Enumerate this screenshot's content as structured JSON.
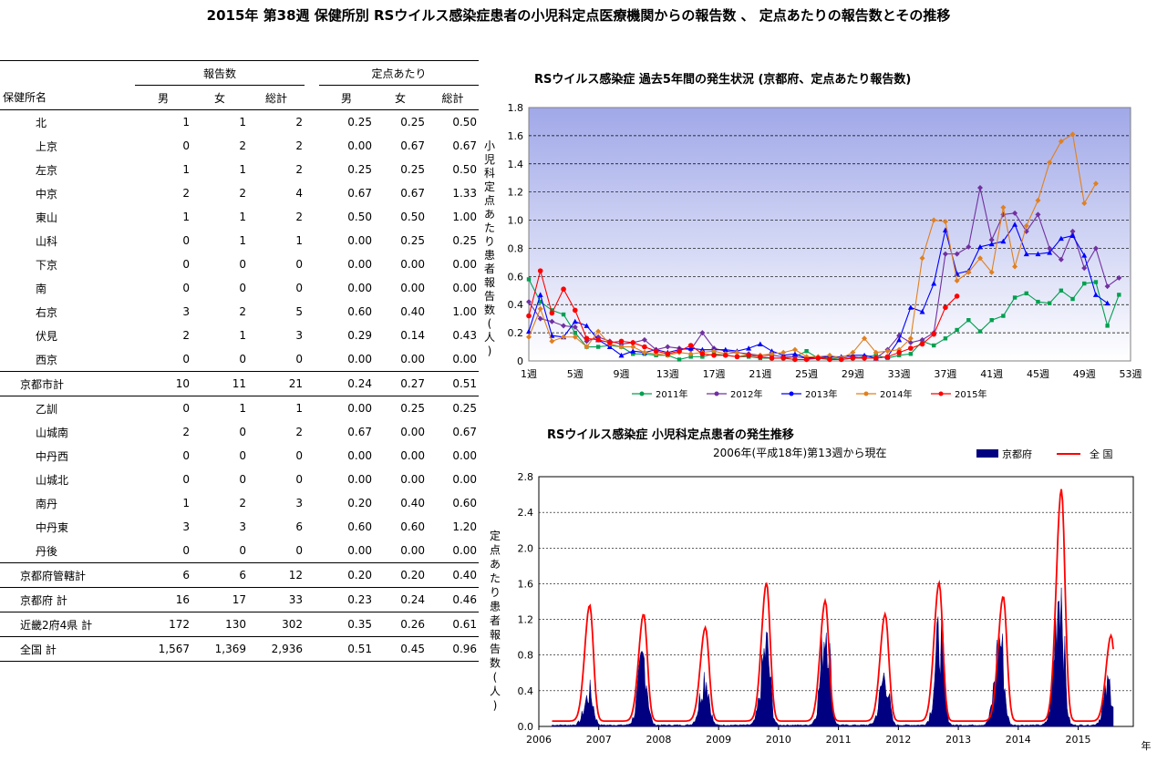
{
  "title": "2015年 第38週 保健所別 RSウイルス感染症患者の小児科定点医療機関からの報告数 、 定点あたりの報告数とその推移",
  "table": {
    "group_reports": "報告数",
    "group_per": "定点あたり",
    "col_name": "保健所名",
    "col_male": "男",
    "col_female": "女",
    "col_total": "総計",
    "rows": [
      {
        "name": "北",
        "m": "1",
        "f": "1",
        "t": "2",
        "pm": "0.25",
        "pf": "0.25",
        "pt": "0.50",
        "kind": "item"
      },
      {
        "name": "上京",
        "m": "0",
        "f": "2",
        "t": "2",
        "pm": "0.00",
        "pf": "0.67",
        "pt": "0.67",
        "kind": "item"
      },
      {
        "name": "左京",
        "m": "1",
        "f": "1",
        "t": "2",
        "pm": "0.25",
        "pf": "0.25",
        "pt": "0.50",
        "kind": "item"
      },
      {
        "name": "中京",
        "m": "2",
        "f": "2",
        "t": "4",
        "pm": "0.67",
        "pf": "0.67",
        "pt": "1.33",
        "kind": "item"
      },
      {
        "name": "東山",
        "m": "1",
        "f": "1",
        "t": "2",
        "pm": "0.50",
        "pf": "0.50",
        "pt": "1.00",
        "kind": "item"
      },
      {
        "name": "山科",
        "m": "0",
        "f": "1",
        "t": "1",
        "pm": "0.00",
        "pf": "0.25",
        "pt": "0.25",
        "kind": "item"
      },
      {
        "name": "下京",
        "m": "0",
        "f": "0",
        "t": "0",
        "pm": "0.00",
        "pf": "0.00",
        "pt": "0.00",
        "kind": "item"
      },
      {
        "name": "南",
        "m": "0",
        "f": "0",
        "t": "0",
        "pm": "0.00",
        "pf": "0.00",
        "pt": "0.00",
        "kind": "item"
      },
      {
        "name": "右京",
        "m": "3",
        "f": "2",
        "t": "5",
        "pm": "0.60",
        "pf": "0.40",
        "pt": "1.00",
        "kind": "item"
      },
      {
        "name": "伏見",
        "m": "2",
        "f": "1",
        "t": "3",
        "pm": "0.29",
        "pf": "0.14",
        "pt": "0.43",
        "kind": "item"
      },
      {
        "name": "西京",
        "m": "0",
        "f": "0",
        "t": "0",
        "pm": "0.00",
        "pf": "0.00",
        "pt": "0.00",
        "kind": "item"
      },
      {
        "name": "京都市計",
        "m": "10",
        "f": "11",
        "t": "21",
        "pm": "0.24",
        "pf": "0.27",
        "pt": "0.51",
        "kind": "total"
      },
      {
        "name": "乙訓",
        "m": "0",
        "f": "1",
        "t": "1",
        "pm": "0.00",
        "pf": "0.25",
        "pt": "0.25",
        "kind": "item"
      },
      {
        "name": "山城南",
        "m": "2",
        "f": "0",
        "t": "2",
        "pm": "0.67",
        "pf": "0.00",
        "pt": "0.67",
        "kind": "item"
      },
      {
        "name": "中丹西",
        "m": "0",
        "f": "0",
        "t": "0",
        "pm": "0.00",
        "pf": "0.00",
        "pt": "0.00",
        "kind": "item"
      },
      {
        "name": "山城北",
        "m": "0",
        "f": "0",
        "t": "0",
        "pm": "0.00",
        "pf": "0.00",
        "pt": "0.00",
        "kind": "item"
      },
      {
        "name": "南丹",
        "m": "1",
        "f": "2",
        "t": "3",
        "pm": "0.20",
        "pf": "0.40",
        "pt": "0.60",
        "kind": "item"
      },
      {
        "name": "中丹東",
        "m": "3",
        "f": "3",
        "t": "6",
        "pm": "0.60",
        "pf": "0.60",
        "pt": "1.20",
        "kind": "item"
      },
      {
        "name": "丹後",
        "m": "0",
        "f": "0",
        "t": "0",
        "pm": "0.00",
        "pf": "0.00",
        "pt": "0.00",
        "kind": "item"
      },
      {
        "name": "京都府管轄計",
        "m": "6",
        "f": "6",
        "t": "12",
        "pm": "0.20",
        "pf": "0.20",
        "pt": "0.40",
        "kind": "total"
      },
      {
        "name": "京都府 計",
        "m": "16",
        "f": "17",
        "t": "33",
        "pm": "0.23",
        "pf": "0.24",
        "pt": "0.46",
        "kind": "total"
      },
      {
        "name": "近畿2府4県 計",
        "m": "172",
        "f": "130",
        "t": "302",
        "pm": "0.35",
        "pf": "0.26",
        "pt": "0.61",
        "kind": "total"
      },
      {
        "name": "全国 計",
        "m": "1,567",
        "f": "1,369",
        "t": "2,936",
        "pm": "0.51",
        "pf": "0.45",
        "pt": "0.96",
        "kind": "total"
      }
    ]
  },
  "colors": {
    "y2011": "#00A050",
    "y2012": "#7030A0",
    "y2013": "#0000FF",
    "y2014": "#E08020",
    "y2015": "#FF0000",
    "kyoto": "#000080",
    "national": "#FF0000"
  },
  "chart_data": [
    {
      "type": "line",
      "title": "RSウイルス感染症 過去5年間の発生状況 (京都府、定点あたり報告数)",
      "ylabel": "小児科定点あたり患者報告数(人)",
      "ylim": [
        0,
        1.8
      ],
      "yticks": [
        "0",
        "0.2",
        "0.4",
        "0.6",
        "0.8",
        "1.0",
        "1.2",
        "1.4",
        "1.6",
        "1.8"
      ],
      "xticks": [
        "1週",
        "5週",
        "9週",
        "13週",
        "17週",
        "21週",
        "25週",
        "29週",
        "33週",
        "37週",
        "41週",
        "45週",
        "49週",
        "53週"
      ],
      "grid": true,
      "legend": "bottom",
      "series": [
        {
          "name": "2011年",
          "values": [
            0.58,
            0.42,
            0.36,
            0.33,
            0.2,
            0.1,
            0.1,
            0.11,
            0.1,
            0.05,
            0.05,
            0.04,
            0.04,
            0.01,
            0.03,
            0.03,
            0.05,
            0.04,
            0.03,
            0.03,
            0.02,
            0.02,
            0.02,
            0.03,
            0.07,
            0.02,
            0.02,
            0.01,
            0.02,
            0.03,
            0.04,
            0.02,
            0.04,
            0.05,
            0.14,
            0.11,
            0.16,
            0.22,
            0.29,
            0.21,
            0.29,
            0.32,
            0.45,
            0.48,
            0.42,
            0.41,
            0.5,
            0.44,
            0.55,
            0.56,
            0.25,
            0.47
          ]
        },
        {
          "name": "2012年",
          "values": [
            0.42,
            0.3,
            0.28,
            0.25,
            0.24,
            0.14,
            0.17,
            0.14,
            0.12,
            0.13,
            0.15,
            0.08,
            0.1,
            0.09,
            0.08,
            0.2,
            0.09,
            0.07,
            0.06,
            0.05,
            0.04,
            0.04,
            0.03,
            0.03,
            0.02,
            0.02,
            0.03,
            0.02,
            0.03,
            0.02,
            0.02,
            0.08,
            0.18,
            0.13,
            0.15,
            0.2,
            0.76,
            0.76,
            0.81,
            1.23,
            0.86,
            1.04,
            1.05,
            0.92,
            1.04,
            0.8,
            0.72,
            0.92,
            0.66,
            0.8,
            0.53,
            0.59
          ]
        },
        {
          "name": "2013年",
          "values": [
            0.21,
            0.47,
            0.18,
            0.17,
            0.28,
            0.25,
            0.15,
            0.1,
            0.04,
            0.07,
            0.06,
            0.08,
            0.06,
            0.08,
            0.09,
            0.08,
            0.08,
            0.08,
            0.07,
            0.09,
            0.12,
            0.07,
            0.04,
            0.05,
            0.02,
            0.03,
            0.03,
            0.03,
            0.04,
            0.04,
            0.02,
            0.03,
            0.15,
            0.38,
            0.35,
            0.55,
            0.93,
            0.62,
            0.64,
            0.81,
            0.83,
            0.85,
            0.97,
            0.76,
            0.76,
            0.77,
            0.87,
            0.89,
            0.75,
            0.47,
            0.41
          ]
        },
        {
          "name": "2014年",
          "values": [
            0.17,
            0.37,
            0.14,
            0.17,
            0.17,
            0.1,
            0.21,
            0.12,
            0.1,
            0.1,
            0.06,
            0.05,
            0.04,
            0.06,
            0.05,
            0.06,
            0.07,
            0.05,
            0.06,
            0.04,
            0.04,
            0.05,
            0.06,
            0.08,
            0.03,
            0.03,
            0.04,
            0.02,
            0.06,
            0.16,
            0.06,
            0.07,
            0.08,
            0.16,
            0.73,
            1.0,
            0.99,
            0.57,
            0.63,
            0.73,
            0.63,
            1.09,
            0.67,
            0.96,
            1.14,
            1.41,
            1.56,
            1.61,
            1.12,
            1.26
          ]
        },
        {
          "name": "2015年",
          "values": [
            0.32,
            0.64,
            0.34,
            0.51,
            0.36,
            0.16,
            0.15,
            0.13,
            0.14,
            0.13,
            0.1,
            0.07,
            0.05,
            0.07,
            0.11,
            0.05,
            0.04,
            0.04,
            0.03,
            0.04,
            0.03,
            0.02,
            0.02,
            0.01,
            0.01,
            0.02,
            0.01,
            0.01,
            0.02,
            0.02,
            0.02,
            0.03,
            0.06,
            0.09,
            0.12,
            0.19,
            0.38,
            0.46
          ]
        }
      ]
    },
    {
      "type": "area",
      "title": "RSウイルス感染症 小児科定点患者の発生推移",
      "subtitle": "2006年(平成18年)第13週から現在",
      "ylabel": "定点あたり患者報告数(人)",
      "xlabel": "年",
      "ylim": [
        0,
        2.8
      ],
      "yticks": [
        "0.0",
        "0.4",
        "0.8",
        "1.2",
        "1.6",
        "2.0",
        "2.4",
        "2.8"
      ],
      "xticks": [
        "2006",
        "2007",
        "2008",
        "2009",
        "2010",
        "2011",
        "2012",
        "2013",
        "2014",
        "2015"
      ],
      "legend": "top-right",
      "series": [
        {
          "name": "京都府",
          "style": "area",
          "peaks": [
            [
              2006.85,
              0.35
            ],
            [
              2007.75,
              0.72
            ],
            [
              2008.78,
              0.55
            ],
            [
              2009.8,
              0.85
            ],
            [
              2010.8,
              1.15
            ],
            [
              2011.78,
              0.55
            ],
            [
              2012.7,
              1.0
            ],
            [
              2013.7,
              0.95
            ],
            [
              2014.7,
              1.6
            ],
            [
              2015.52,
              0.44
            ]
          ]
        },
        {
          "name": "全 国",
          "style": "line",
          "peaks": [
            [
              2006.85,
              1.3
            ],
            [
              2007.75,
              1.2
            ],
            [
              2008.78,
              1.05
            ],
            [
              2009.8,
              1.55
            ],
            [
              2010.78,
              1.35
            ],
            [
              2011.78,
              1.2
            ],
            [
              2012.68,
              1.55
            ],
            [
              2013.75,
              1.4
            ],
            [
              2014.72,
              2.6
            ],
            [
              2015.55,
              0.96
            ]
          ]
        }
      ]
    }
  ]
}
